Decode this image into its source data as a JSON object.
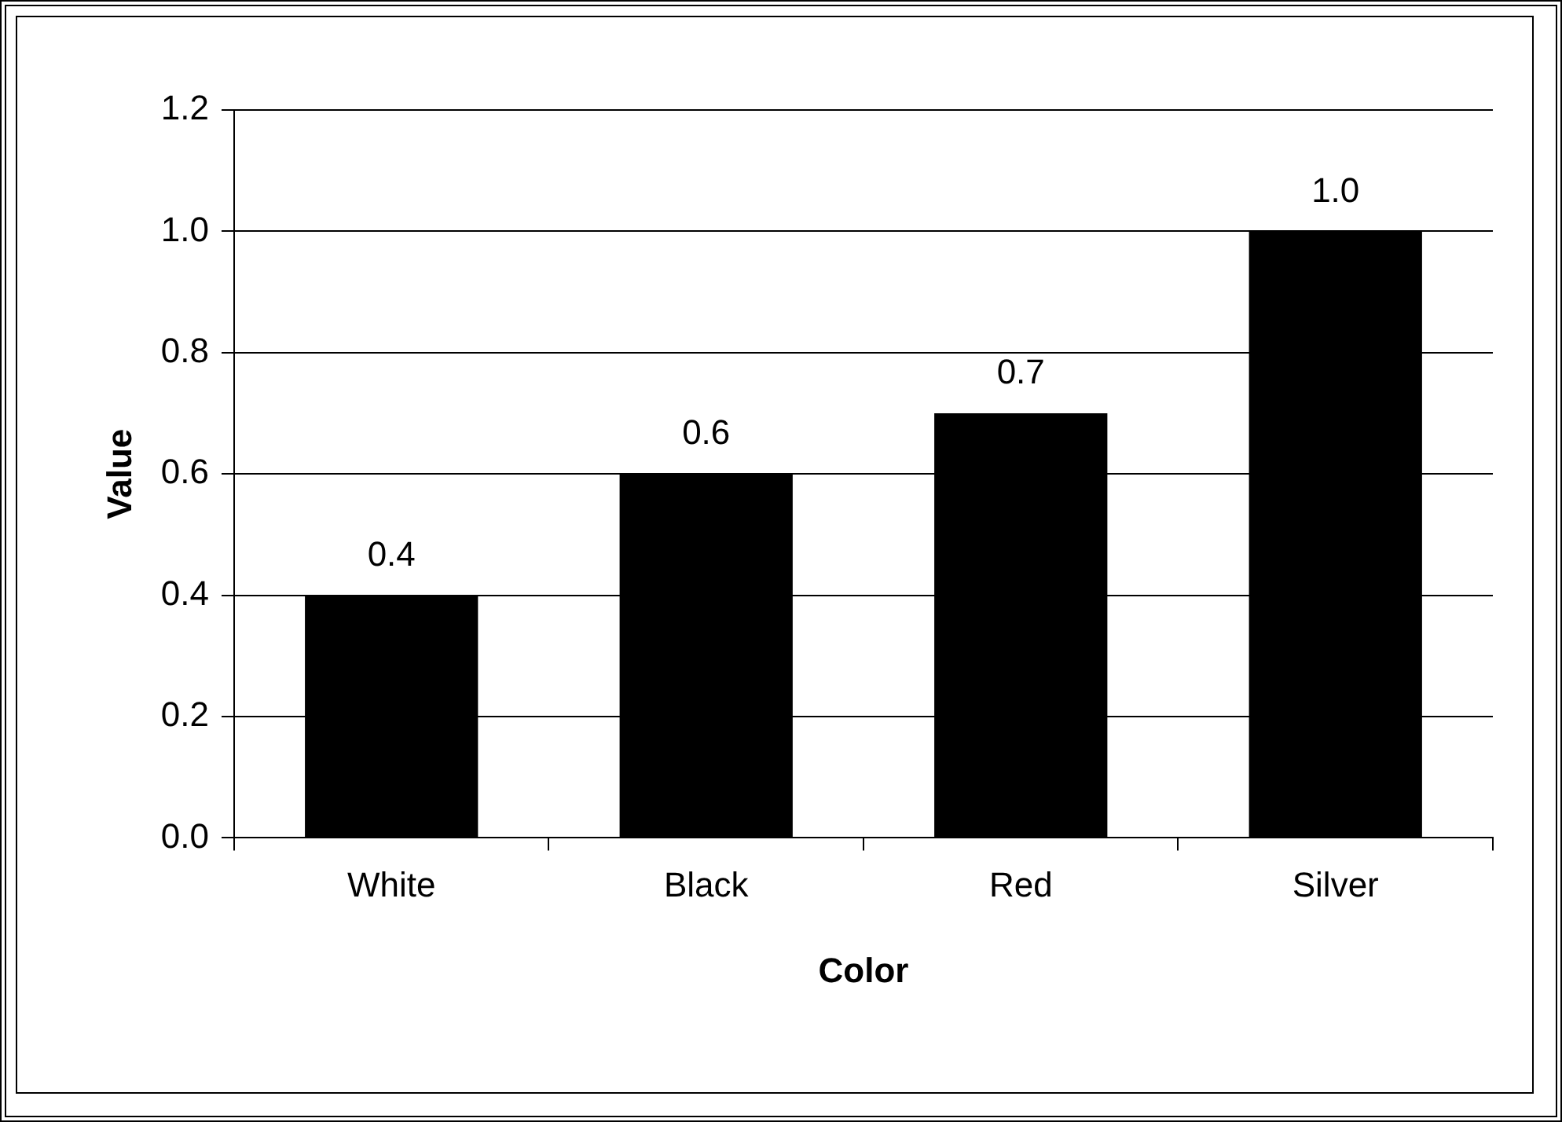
{
  "chart_data": {
    "type": "bar",
    "xlabel": "Color",
    "ylabel": "Value",
    "categories": [
      "White",
      "Black",
      "Red",
      "Silver"
    ],
    "values": [
      0.4,
      0.6,
      0.7,
      1.0
    ],
    "color": "#000000",
    "value_labels": [
      "0.4",
      "0.6",
      "0.7",
      "1.0"
    ],
    "ylim": [
      0,
      1.2
    ],
    "yticks": [
      {
        "value": 0,
        "label": "0.0"
      },
      {
        "value": 0.2,
        "label": "0.2"
      },
      {
        "value": 0.4,
        "label": "0.4"
      },
      {
        "value": 0.6,
        "label": "0.6"
      },
      {
        "value": 0.8,
        "label": "0.8"
      },
      {
        "value": 1.0,
        "label": "1.0"
      },
      {
        "value": 1.2,
        "label": "1.2"
      }
    ],
    "grid": "y",
    "legend": false
  }
}
